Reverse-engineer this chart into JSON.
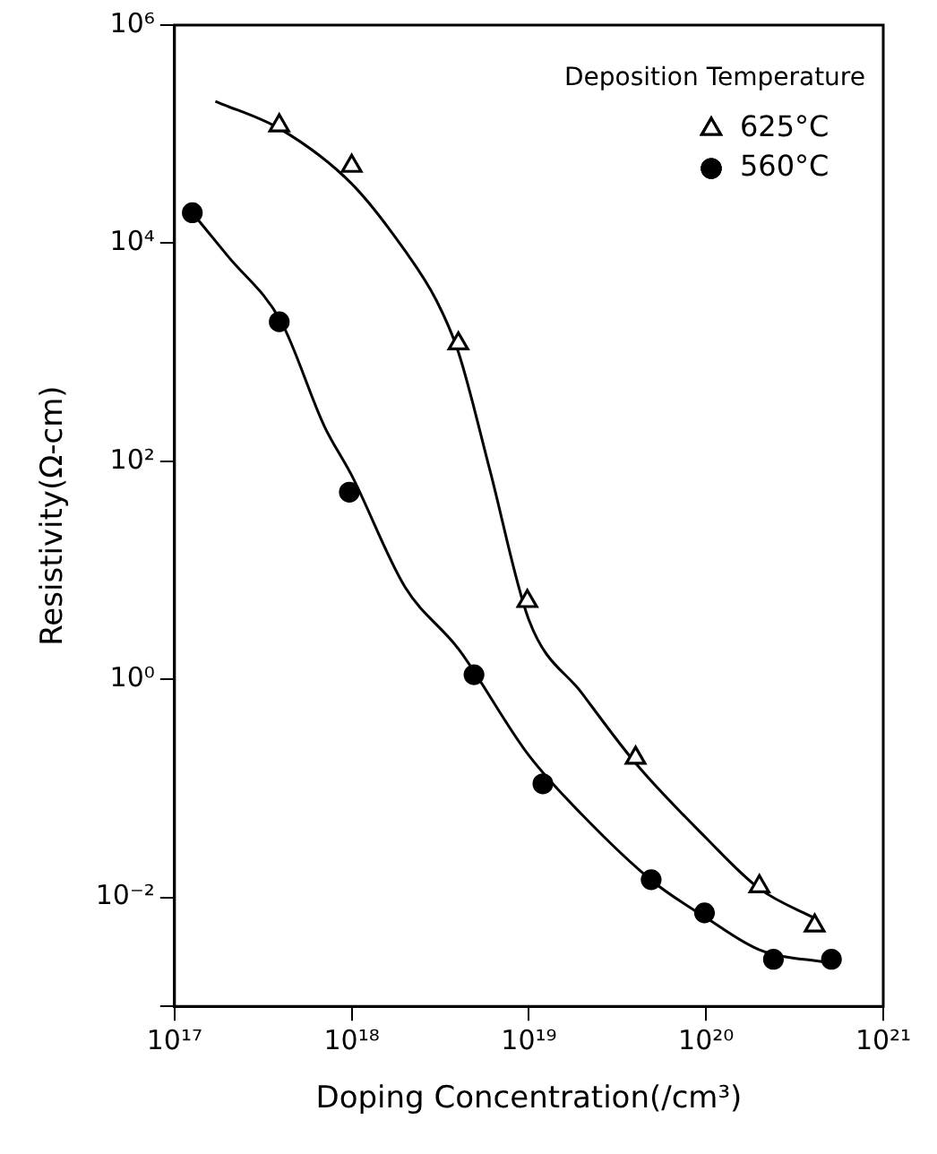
{
  "chart_data": {
    "type": "scatter",
    "xlabel": "Doping Concentration(/cm³)",
    "ylabel": "Resistivity(Ω-cm)",
    "legend_title": "Deposition Temperature",
    "log": "xy",
    "grid": false,
    "legend": "top right",
    "xlim": [
      1e+17,
      1e+21
    ],
    "xticks": [
      {
        "value": 1e+17,
        "label": "10¹⁷"
      },
      {
        "value": 1e+18,
        "label": "10¹⁸"
      },
      {
        "value": 1e+19,
        "label": "10¹⁹"
      },
      {
        "value": 1e+20,
        "label": "10²⁰"
      },
      {
        "value": 1e+21,
        "label": "10²¹"
      }
    ],
    "ylim": [
      0.001,
      1000000
    ],
    "yticks": [
      {
        "value": 0.001,
        "label": null
      },
      {
        "value": 0.01,
        "label": "10⁻²"
      },
      {
        "value": 1,
        "label": "10⁰"
      },
      {
        "value": 100,
        "label": "10²"
      },
      {
        "value": 10000,
        "label": "10⁴"
      },
      {
        "value": 1000000,
        "label": "10⁶"
      }
    ],
    "series": [
      {
        "name": "625°C",
        "marker": "triangle",
        "color": "#000000",
        "x": [
          3.9e+17,
          1e+18,
          4e+18,
          9.8e+18,
          4e+19,
          2e+20,
          4.1e+20
        ],
        "values": [
          120000,
          51000,
          1200,
          5.2,
          0.19,
          0.0126,
          0.0055
        ]
      },
      {
        "name": "560°C",
        "marker": "circle",
        "color": "#000000",
        "x": [
          1.26e+17,
          3.9e+17,
          9.7e+17,
          4.9e+18,
          1.2e+19,
          4.9e+19,
          9.8e+19,
          2.4e+20,
          5.1e+20
        ],
        "values": [
          19000,
          1900,
          52,
          1.1,
          0.11,
          0.0145,
          0.0072,
          0.0027,
          0.0027
        ]
      },
      {
        "type": "line",
        "marker": "none",
        "color": "#000000",
        "x": [
          1.7e+17,
          4e+17,
          1e+18,
          2e+18,
          3e+18,
          4e+18,
          6e+18,
          1e+19,
          2e+19,
          4e+19,
          1e+20,
          2e+20,
          4.2e+20
        ],
        "values": [
          200000,
          110000,
          35000,
          8500,
          3000,
          1000,
          85,
          3.5,
          0.74,
          0.17,
          0.035,
          0.012,
          0.0063
        ]
      },
      {
        "type": "line",
        "marker": "none",
        "color": "#000000",
        "x": [
          1.26e+17,
          2e+17,
          4e+17,
          7e+17,
          1e+18,
          2e+18,
          4e+18,
          1e+19,
          2e+19,
          5e+19,
          1e+20,
          2e+20,
          5e+20
        ],
        "values": [
          19000,
          7600,
          1900,
          210,
          74,
          7,
          1.9,
          0.2,
          0.057,
          0.014,
          0.0065,
          0.0033,
          0.0025
        ]
      }
    ]
  }
}
